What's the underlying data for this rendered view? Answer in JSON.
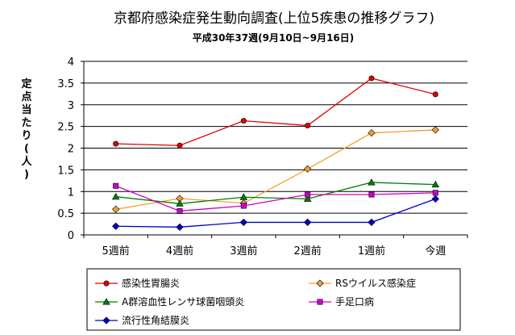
{
  "chart_data": {
    "type": "line",
    "title": "京都府感染症発生動向調査(上位5疾患の推移グラフ)",
    "subtitle": "平成30年37週(9月10日~9月16日)",
    "ylabel": "定点当たり(人)",
    "xlabel": "",
    "categories": [
      "5週前",
      "4週前",
      "3週前",
      "2週前",
      "1週前",
      "今週"
    ],
    "ylim": [
      0,
      4
    ],
    "yticks": [
      "0",
      "0.5",
      "1",
      "1.5",
      "2",
      "2.5",
      "3",
      "3.5",
      "4"
    ],
    "grid": "horizontal",
    "legend_position": "bottom",
    "series": [
      {
        "name": "感染性胃腸炎",
        "color": "#e00000",
        "marker": "circle",
        "values": [
          2.1,
          2.06,
          2.63,
          2.52,
          3.61,
          3.24
        ]
      },
      {
        "name": "RSウイルス感染症",
        "color": "#f0a030",
        "marker": "diamond",
        "values": [
          0.59,
          0.84,
          0.73,
          1.52,
          2.35,
          2.42
        ]
      },
      {
        "name": "A群溶血性レンサ球菌咽頭炎",
        "color": "#008000",
        "marker": "triangle",
        "values": [
          0.88,
          0.72,
          0.87,
          0.83,
          1.21,
          1.16
        ]
      },
      {
        "name": "手足口病",
        "color": "#cc00cc",
        "marker": "square",
        "values": [
          1.13,
          0.55,
          0.67,
          0.93,
          0.93,
          0.97
        ]
      },
      {
        "name": "流行性角結膜炎",
        "color": "#0000cc",
        "marker": "diamond",
        "values": [
          0.2,
          0.18,
          0.29,
          0.29,
          0.29,
          0.83
        ]
      }
    ]
  }
}
